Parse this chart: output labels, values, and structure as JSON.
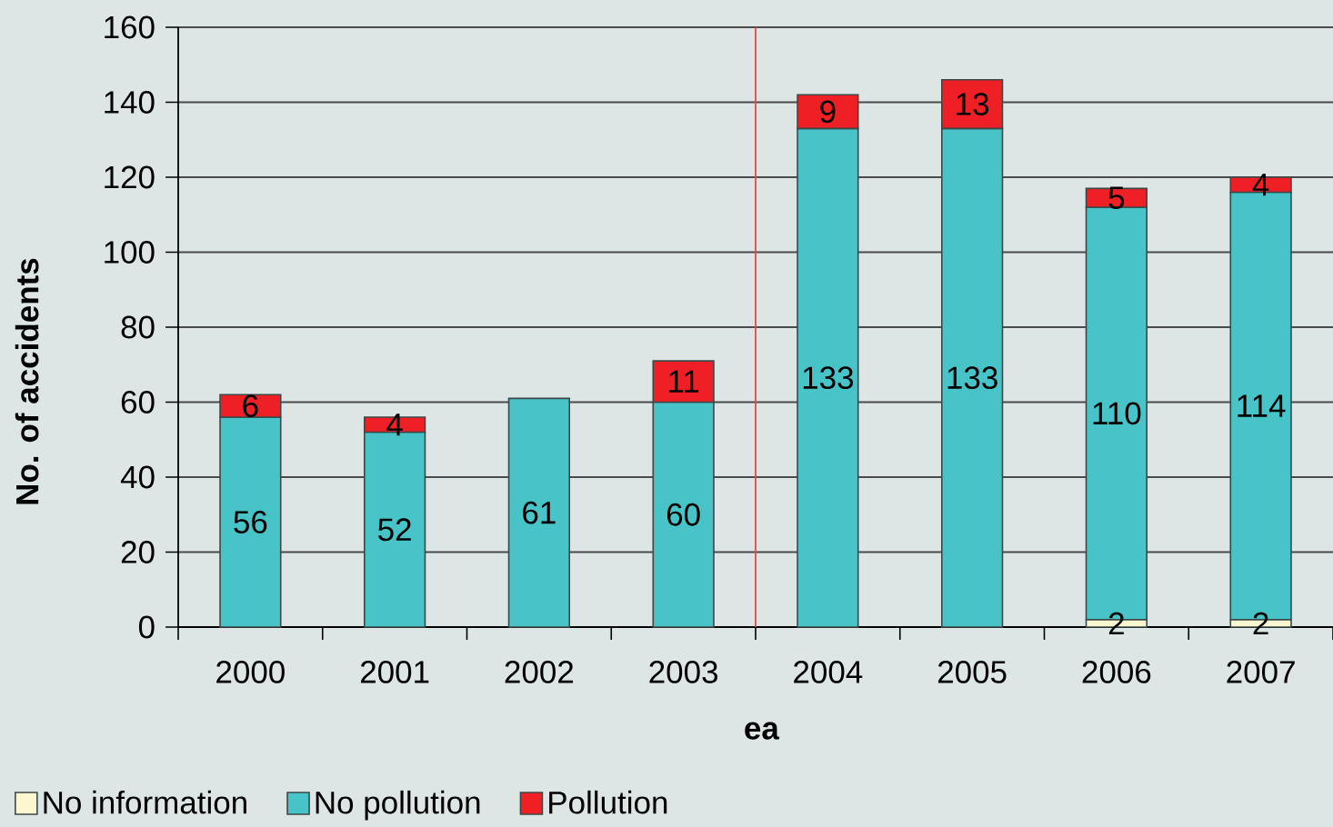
{
  "chart_data": {
    "type": "bar",
    "stacked": true,
    "x": [
      2000,
      2001,
      2002,
      2003,
      2004,
      2005,
      2006,
      2007
    ],
    "series": [
      {
        "name": "No information",
        "color": "#fdf7d0",
        "values": [
          null,
          null,
          null,
          null,
          null,
          null,
          2,
          2
        ]
      },
      {
        "name": "No pollution",
        "color": "#48c3c7",
        "values": [
          56,
          52,
          61,
          60,
          133,
          133,
          110,
          114
        ]
      },
      {
        "name": "Pollution",
        "color": "#ee2026",
        "values": [
          6,
          4,
          null,
          11,
          9,
          13,
          5,
          4
        ]
      }
    ],
    "xlabel": "ea",
    "ylabel": "No. of accidents",
    "xlim": [
      1999.5,
      2007.5
    ],
    "xticks": [
      {
        "value": 1999.5,
        "label": null
      },
      2000,
      {
        "value": 2000.5,
        "label": null
      },
      2001,
      {
        "value": 2001.5,
        "label": null
      },
      2002,
      {
        "value": 2002.5,
        "label": null
      },
      2003,
      {
        "value": 2003.5,
        "label": null
      },
      2004,
      {
        "value": 2004.5,
        "label": null
      },
      2005,
      {
        "value": 2005.5,
        "label": null
      },
      2006,
      {
        "value": 2006.5,
        "label": null
      },
      2007,
      {
        "value": 2007.5,
        "label": null
      }
    ],
    "ylim": [
      0,
      160
    ],
    "yticks": [
      0,
      20,
      40,
      60,
      80,
      100,
      120,
      140,
      160
    ],
    "grid": "y",
    "legend": "bottom left",
    "data_labels": true,
    "ref_lines": [
      {
        "axis": "x",
        "value": 2003.5,
        "color": "#e8474a"
      }
    ]
  }
}
